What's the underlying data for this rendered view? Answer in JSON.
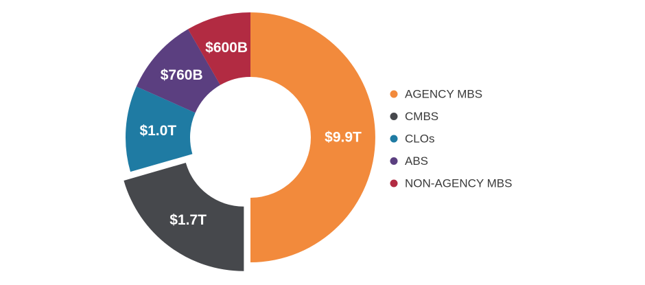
{
  "chart_data": {
    "type": "pie",
    "title": "",
    "categories": [
      "AGENCY MBS",
      "CMBS",
      "CLOs",
      "ABS",
      "NON-AGENCY MBS"
    ],
    "values": [
      9.9,
      1.7,
      1.0,
      0.76,
      0.6
    ],
    "value_labels": [
      "$9.9T",
      "$1.7T",
      "$1.0T",
      "$760B",
      "$600B"
    ],
    "colors": [
      "#f28a3c",
      "#46484c",
      "#1f7ba3",
      "#5b3f80",
      "#b22b42"
    ],
    "exploded": "CMBS",
    "donut": true,
    "legend_placement": "right"
  }
}
